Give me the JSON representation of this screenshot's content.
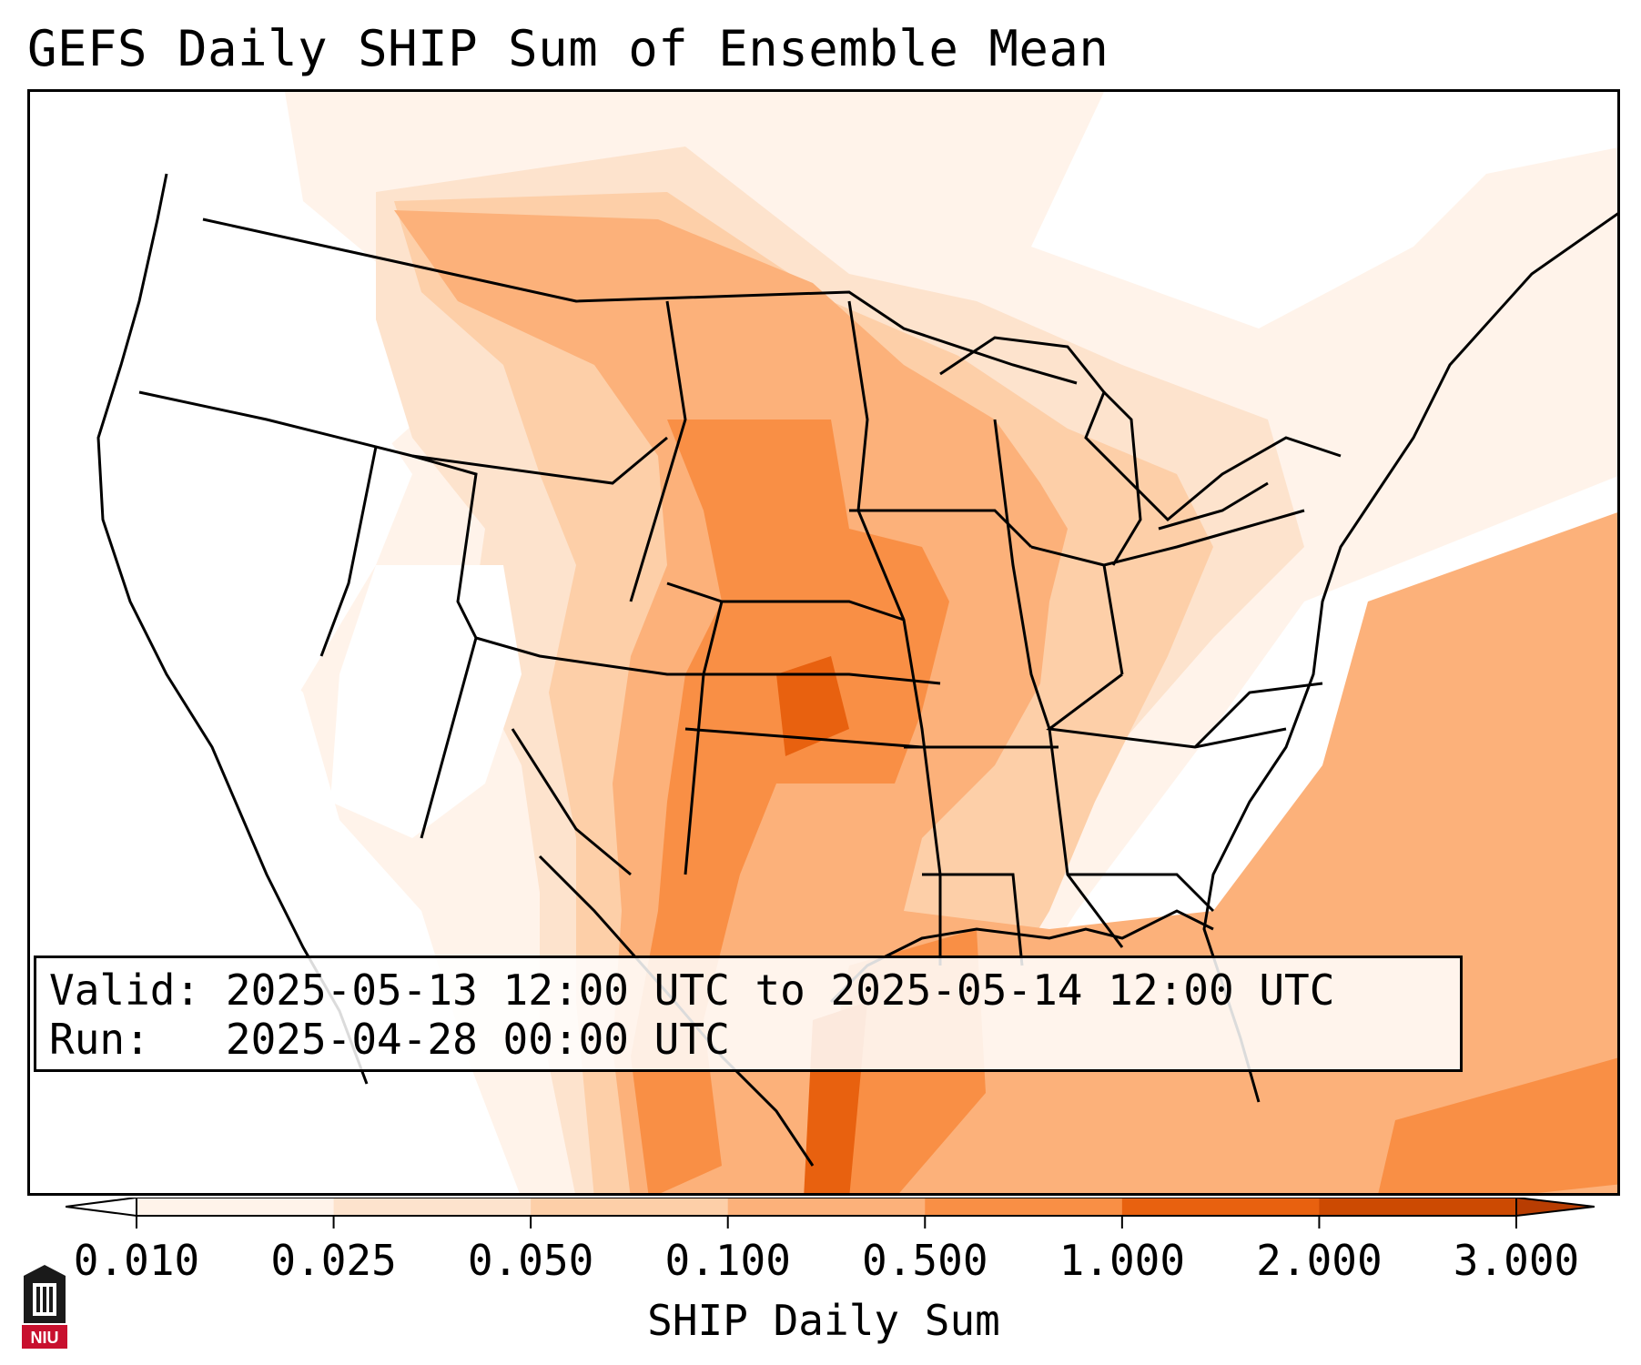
{
  "title": "GEFS Daily SHIP Sum of Ensemble Mean",
  "info": {
    "valid_label": "Valid:",
    "valid_value": "2025-05-13 12:00 UTC to 2025-05-14 12:00 UTC",
    "run_label": "Run:",
    "run_value": "2025-04-28 00:00 UTC"
  },
  "colorbar": {
    "label": "SHIP Daily Sum",
    "ticks": [
      "0.010",
      "0.025",
      "0.050",
      "0.100",
      "0.500",
      "1.000",
      "2.000",
      "3.000"
    ],
    "colors": [
      "#fff3ea",
      "#fde3cd",
      "#fdcfa8",
      "#fcb17a",
      "#f98f45",
      "#e8610f",
      "#cc4a02"
    ]
  },
  "logo": {
    "text": "NIU",
    "icon": "university-tower-icon"
  }
}
